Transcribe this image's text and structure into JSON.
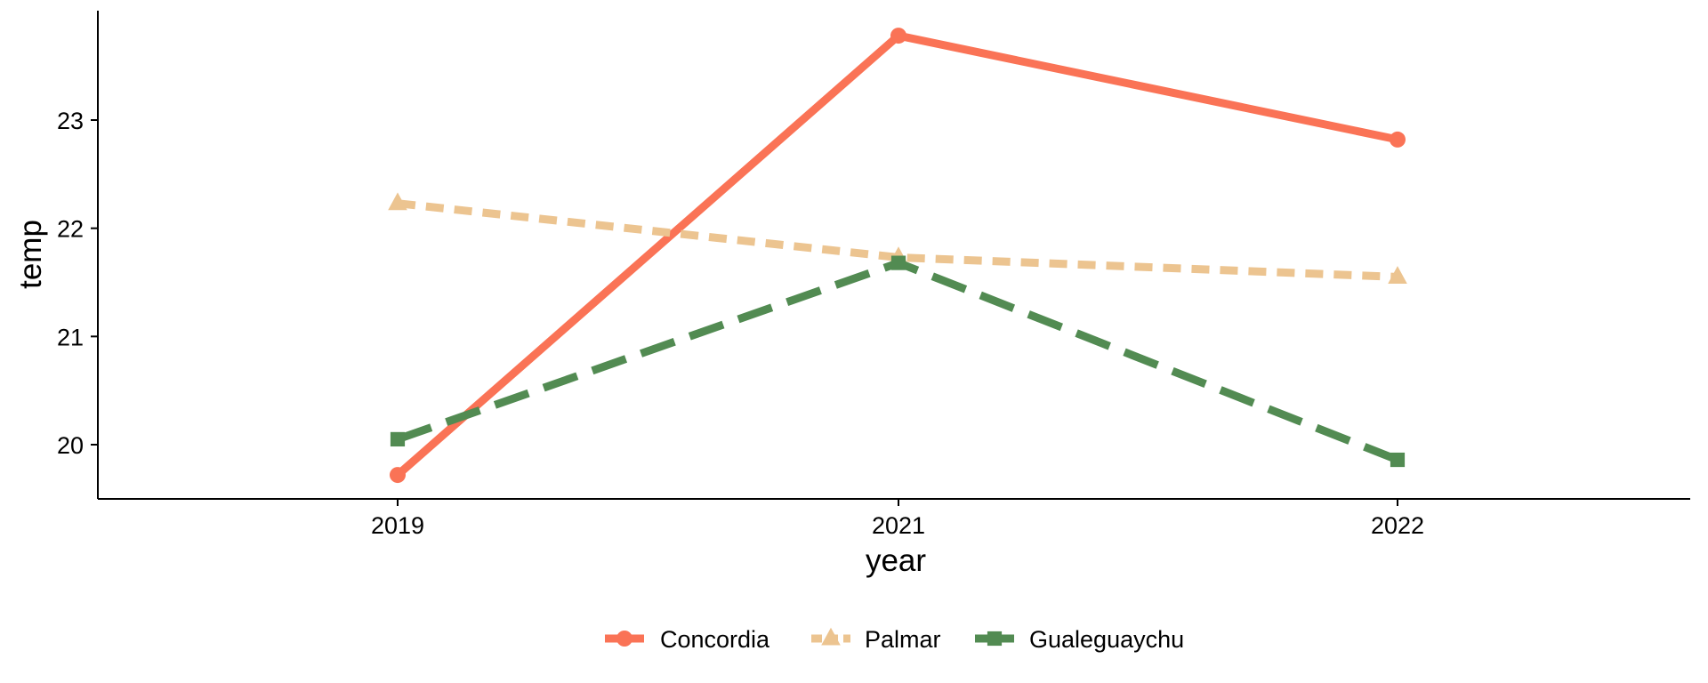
{
  "chart_data": {
    "type": "line",
    "xlabel": "year",
    "ylabel": "temp",
    "categories": [
      "2019",
      "2021",
      "2022"
    ],
    "y_ticks": [
      20,
      21,
      22,
      23
    ],
    "ylim": [
      19.5,
      24.0
    ],
    "grid": false,
    "legend_position": "bottom",
    "series": [
      {
        "name": "Concordia",
        "values": [
          19.72,
          23.78,
          22.82
        ],
        "color": "#FA7356",
        "marker": "circle",
        "line_style": "solid"
      },
      {
        "name": "Palmar",
        "values": [
          22.23,
          21.73,
          21.55
        ],
        "color": "#ECC490",
        "marker": "triangle",
        "line_style": "dotted"
      },
      {
        "name": "Gualeguaychu",
        "values": [
          20.05,
          21.68,
          19.86
        ],
        "color": "#528B52",
        "marker": "square",
        "line_style": "dashed"
      }
    ]
  }
}
